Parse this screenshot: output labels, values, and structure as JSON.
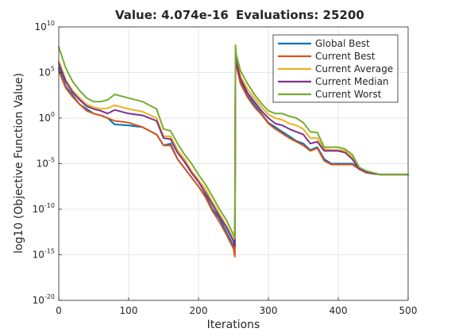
{
  "chart_data": {
    "type": "line",
    "title_value": "Value: 4.074e-16",
    "title_evals": "Evaluations: 25200",
    "xlabel": "Iterations",
    "ylabel": "log10 (Objective Function Value)",
    "xlim": [
      0,
      500
    ],
    "ylim_exponent": [
      -20,
      10
    ],
    "y_scale": "log",
    "grid": true,
    "legend_position": "top-right",
    "x_ticks": [
      "0",
      "100",
      "200",
      "300",
      "400",
      "500"
    ],
    "y_ticks": [
      {
        "base": "10",
        "exp": "10",
        "v": 10
      },
      {
        "base": "10",
        "exp": "5",
        "v": 5
      },
      {
        "base": "10",
        "exp": "0",
        "v": 0
      },
      {
        "base": "10",
        "exp": "-5",
        "v": -5
      },
      {
        "base": "10",
        "exp": "-10",
        "v": -10
      },
      {
        "base": "10",
        "exp": "-15",
        "v": -15
      },
      {
        "base": "10",
        "exp": "-20",
        "v": -20
      }
    ],
    "series": [
      {
        "name": "Global Best",
        "color": "#0072bd",
        "x": [
          0,
          10,
          20,
          30,
          40,
          50,
          60,
          70,
          80,
          100,
          120,
          140,
          150,
          160,
          170,
          180,
          190,
          200,
          210,
          220,
          230,
          240,
          250,
          252,
          253,
          254,
          260,
          270,
          280,
          290,
          300,
          310,
          320,
          330,
          340,
          350,
          360,
          370,
          380,
          390,
          400,
          410,
          420,
          430,
          440,
          450,
          460,
          470,
          480,
          490,
          500
        ],
        "log_y": [
          5.5,
          3.5,
          2.5,
          1.5,
          1,
          0.5,
          0.3,
          0,
          -0.7,
          -0.8,
          -1,
          -1.8,
          -3,
          -2.8,
          -4.5,
          -5.5,
          -6.5,
          -7.5,
          -8.5,
          -10,
          -11,
          -12.5,
          -14,
          -14.2,
          7,
          6,
          4,
          2.5,
          1.5,
          0.5,
          -0.5,
          -1,
          -1.5,
          -2,
          -2.5,
          -2.8,
          -3.5,
          -3.2,
          -4.5,
          -5,
          -5,
          -5,
          -5,
          -5.5,
          -6,
          -6,
          -6.2,
          -6.2,
          -6.2,
          -6.2,
          -6.2
        ]
      },
      {
        "name": "Current Best",
        "color": "#d95319",
        "x": [
          0,
          10,
          20,
          30,
          40,
          50,
          60,
          70,
          80,
          100,
          120,
          140,
          150,
          160,
          170,
          180,
          190,
          200,
          210,
          220,
          230,
          240,
          250,
          252,
          253,
          254,
          260,
          270,
          280,
          290,
          300,
          310,
          320,
          330,
          340,
          350,
          360,
          370,
          380,
          390,
          400,
          410,
          420,
          430,
          440,
          450,
          460,
          470,
          480,
          490,
          500
        ],
        "log_y": [
          5.2,
          3.3,
          2.3,
          1.5,
          0.8,
          0.5,
          0.3,
          0,
          -0.3,
          -0.5,
          -1,
          -1.8,
          -3,
          -3,
          -4.5,
          -5.5,
          -6.5,
          -7.5,
          -8.7,
          -10.2,
          -11.4,
          -12.8,
          -14.3,
          -15.2,
          6.8,
          5.8,
          3.8,
          2.3,
          1.2,
          0.4,
          -0.6,
          -1.2,
          -1.7,
          -2.2,
          -2.6,
          -3,
          -3.6,
          -3.3,
          -4.7,
          -5.1,
          -5.1,
          -5.1,
          -5.1,
          -5.6,
          -6,
          -6.1,
          -6.2,
          -6.2,
          -6.2,
          -6.2,
          -6.2
        ]
      },
      {
        "name": "Current Average",
        "color": "#edb120",
        "x": [
          0,
          10,
          20,
          30,
          40,
          50,
          60,
          70,
          80,
          100,
          120,
          140,
          150,
          160,
          170,
          180,
          190,
          200,
          210,
          220,
          230,
          240,
          250,
          252,
          253,
          254,
          260,
          270,
          280,
          290,
          300,
          310,
          320,
          330,
          340,
          350,
          360,
          370,
          380,
          390,
          400,
          410,
          420,
          430,
          440,
          450,
          460,
          470,
          480,
          490,
          500
        ],
        "log_y": [
          6.3,
          4.2,
          3,
          2.2,
          1.5,
          1.2,
          1,
          1.1,
          1.4,
          1,
          0.7,
          0,
          -2,
          -2,
          -3.5,
          -4.5,
          -5.8,
          -6.8,
          -7.8,
          -9.2,
          -10.5,
          -11.8,
          -13.3,
          -13.8,
          7.5,
          6.5,
          4.6,
          3.2,
          2.2,
          1.2,
          0.4,
          0,
          -0.2,
          -0.6,
          -0.8,
          -1.2,
          -2.2,
          -2.2,
          -3.4,
          -3.5,
          -3.5,
          -3.6,
          -4.3,
          -5.5,
          -5.9,
          -6.1,
          -6.2,
          -6.2,
          -6.2,
          -6.2,
          -6.2
        ]
      },
      {
        "name": "Current Median",
        "color": "#7e2f8e",
        "x": [
          0,
          10,
          20,
          30,
          40,
          50,
          60,
          70,
          80,
          100,
          120,
          140,
          150,
          160,
          170,
          180,
          190,
          200,
          210,
          220,
          230,
          240,
          250,
          252,
          253,
          254,
          260,
          270,
          280,
          290,
          300,
          310,
          320,
          330,
          340,
          350,
          360,
          370,
          380,
          390,
          400,
          410,
          420,
          430,
          440,
          450,
          460,
          470,
          480,
          490,
          500
        ],
        "log_y": [
          6,
          4,
          2.8,
          2,
          1.3,
          1,
          0.8,
          0.5,
          0.9,
          0.5,
          0.3,
          -0.3,
          -2.2,
          -2.3,
          -3.8,
          -4.8,
          -6,
          -7,
          -8.2,
          -9.5,
          -10.8,
          -12,
          -13.5,
          -14,
          7.2,
          6.2,
          4.3,
          2.8,
          1.8,
          0.8,
          0,
          -0.6,
          -0.8,
          -1.2,
          -1.5,
          -1.8,
          -2.8,
          -2.6,
          -3.6,
          -3.6,
          -3.6,
          -3.8,
          -4.5,
          -5.6,
          -5.9,
          -6.1,
          -6.2,
          -6.2,
          -6.2,
          -6.2,
          -6.2
        ]
      },
      {
        "name": "Current Worst",
        "color": "#77ac30",
        "x": [
          0,
          10,
          20,
          30,
          40,
          50,
          60,
          70,
          80,
          100,
          120,
          140,
          150,
          160,
          170,
          180,
          190,
          200,
          210,
          220,
          230,
          240,
          250,
          252,
          253,
          254,
          260,
          270,
          280,
          290,
          300,
          310,
          320,
          330,
          340,
          350,
          360,
          370,
          380,
          390,
          400,
          410,
          420,
          430,
          440,
          450,
          460,
          470,
          480,
          490,
          500
        ],
        "log_y": [
          7.8,
          5.5,
          4,
          3,
          2.2,
          1.8,
          1.8,
          2,
          2.6,
          2.2,
          1.8,
          1,
          -1.2,
          -1.4,
          -2.8,
          -4,
          -5,
          -6.2,
          -7.3,
          -8.6,
          -10,
          -11.2,
          -12.8,
          -13.2,
          8,
          7,
          5.2,
          3.8,
          2.6,
          1.6,
          0.8,
          0.5,
          0.5,
          0.2,
          0,
          -0.5,
          -1.5,
          -1.6,
          -3.2,
          -3.2,
          -3.2,
          -3.4,
          -4,
          -5.4,
          -5.8,
          -6,
          -6.2,
          -6.2,
          -6.2,
          -6.2,
          -6.2
        ]
      }
    ]
  }
}
